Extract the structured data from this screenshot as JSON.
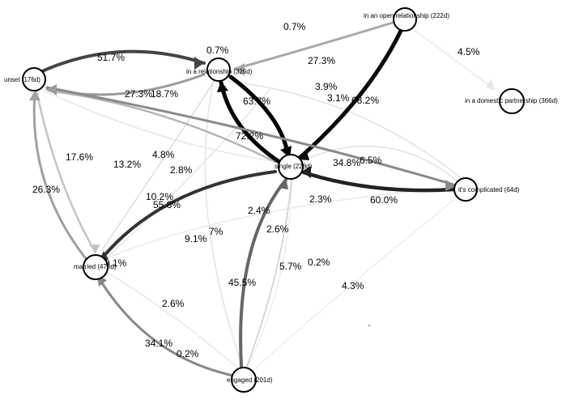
{
  "graph": {
    "nodes": [
      {
        "id": "unset",
        "label": "unset (176d)"
      },
      {
        "id": "relationship",
        "label": "in a relationship (326d)"
      },
      {
        "id": "open",
        "label": "in an open relationship (222d)"
      },
      {
        "id": "domestic",
        "label": "in a domestic partnership (366d)"
      },
      {
        "id": "single",
        "label": "single (228d)"
      },
      {
        "id": "complicated",
        "label": "it's complicated (64d)"
      },
      {
        "id": "married",
        "label": "married (476d)"
      },
      {
        "id": "engaged",
        "label": "engaged (201d)"
      }
    ],
    "edges": [
      {
        "from": "unset",
        "to": "relationship",
        "value": "51.7%",
        "color": "#444444"
      },
      {
        "from": "relationship",
        "to": "unset",
        "value": "27.3%",
        "color": "#9a9a9a"
      },
      {
        "from": "single",
        "to": "unset",
        "value": "18.7%",
        "color": "#b4b4b4"
      },
      {
        "from": "open",
        "to": "relationship",
        "value": "27.3%",
        "color": "#a8a8a8"
      },
      {
        "from": "open",
        "to": "single",
        "value": "68.2%",
        "color": "#0a0a0a"
      },
      {
        "from": "open",
        "to": "domestic",
        "value": "4.5%",
        "color": "#eeeeee"
      },
      {
        "from": "relationship",
        "to": "single",
        "value": "63.7%",
        "color": "#000000"
      },
      {
        "from": "single",
        "to": "relationship",
        "value": "72.2%",
        "color": "#000000"
      },
      {
        "from": "complicated",
        "to": "single",
        "value": "60.0%",
        "color": "#222222"
      },
      {
        "from": "unset",
        "to": "complicated",
        "value": "34.8%",
        "color": "#8a8a8a"
      },
      {
        "from": "single",
        "to": "married",
        "value": "55.8%",
        "color": "#333333"
      },
      {
        "from": "married",
        "to": "unset",
        "value": "26.3%",
        "color": "#a0a0a0"
      },
      {
        "from": "unset",
        "to": "married",
        "value": "17.6%",
        "color": "#c4c4c4"
      },
      {
        "from": "engaged",
        "to": "single",
        "value": "45.5%",
        "color": "#666666"
      },
      {
        "from": "engaged",
        "to": "married",
        "value": "34.1%",
        "color": "#888888"
      },
      {
        "from": "complicated",
        "to": "married",
        "value": "9.1%",
        "color": "#eeeeee"
      }
    ],
    "labels": [
      "0.7%",
      "0.7%",
      "51.7%",
      "27.3%",
      "4.5%",
      "27.3%",
      "18.7%",
      "3.9%",
      "3.1%",
      "68.2%",
      "63.7%",
      "72.2%",
      "17.6%",
      "13.2%",
      "4.8%",
      "2.8%",
      "34.8%",
      "6.5%",
      "26.3%",
      "10.2%",
      "55.8%",
      "2.3%",
      "60.0%",
      "2.4%",
      "7%",
      "9.1%",
      "2.6%",
      "9.1%",
      "5.7%",
      "0.2%",
      "45.5%",
      "4.3%",
      "2.6%",
      "34.1%",
      "0.2%"
    ]
  }
}
